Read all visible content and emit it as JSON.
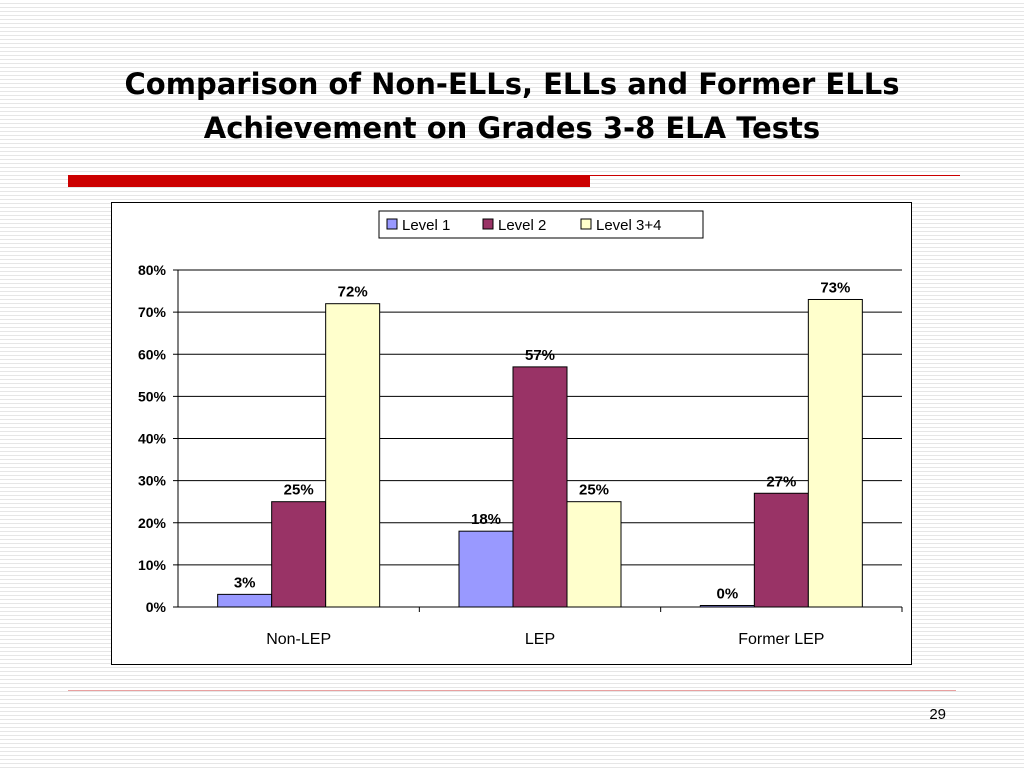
{
  "slide": {
    "title_line1": "Comparison of Non-ELLs, ELLs and Former ELLs",
    "title_line2": "Achievement on Grades 3-8 ELA Tests",
    "page_number": "29"
  },
  "colors": {
    "accent_red": "#cc0000",
    "level1": "#9999ff",
    "level2": "#993366",
    "level34": "#ffffcc"
  },
  "chart_data": {
    "type": "bar",
    "categories": [
      "Non-LEP",
      "LEP",
      "Former LEP"
    ],
    "series": [
      {
        "name": "Level 1",
        "color": "#9999ff",
        "values": [
          3,
          18,
          0
        ],
        "labels": [
          "3%",
          "18%",
          "0%"
        ]
      },
      {
        "name": "Level 2",
        "color": "#993366",
        "values": [
          25,
          57,
          27
        ],
        "labels": [
          "25%",
          "57%",
          "27%"
        ]
      },
      {
        "name": "Level 3+4",
        "color": "#ffffcc",
        "values": [
          72,
          25,
          73
        ],
        "labels": [
          "72%",
          "25%",
          "73%"
        ]
      }
    ],
    "ylim": [
      0,
      80
    ],
    "yticks": [
      0,
      10,
      20,
      30,
      40,
      50,
      60,
      70,
      80
    ],
    "ytick_labels": [
      "0%",
      "10%",
      "20%",
      "30%",
      "40%",
      "50%",
      "60%",
      "70%",
      "80%"
    ],
    "grid": true,
    "legend": "top"
  }
}
